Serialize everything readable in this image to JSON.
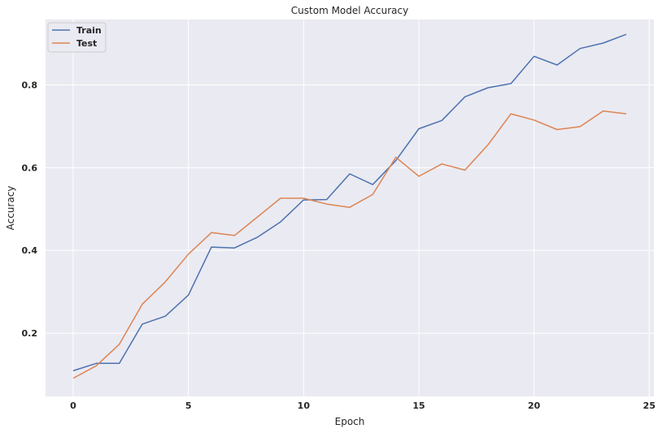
{
  "chart_data": {
    "type": "line",
    "title": "Custom Model Accuracy",
    "xlabel": "Epoch",
    "ylabel": "Accuracy",
    "xlim": [
      -1.2,
      25.2
    ],
    "ylim": [
      0.047,
      0.958
    ],
    "xticks": [
      0,
      5,
      10,
      15,
      20,
      25
    ],
    "yticks": [
      0.2,
      0.4,
      0.6,
      0.8
    ],
    "xtick_labels": [
      "0",
      "5",
      "10",
      "15",
      "20",
      "25"
    ],
    "ytick_labels": [
      "0.2",
      "0.4",
      "0.6",
      "0.8"
    ],
    "grid": true,
    "background": "#eaeaf2",
    "legend_position": "top-left",
    "x": [
      0,
      1,
      2,
      3,
      4,
      5,
      6,
      7,
      8,
      9,
      10,
      11,
      12,
      13,
      14,
      15,
      16,
      17,
      18,
      19,
      20,
      21,
      22,
      23,
      24
    ],
    "series": [
      {
        "name": "Train",
        "color": "#4c72b0",
        "values": [
          0.109,
          0.127,
          0.127,
          0.222,
          0.241,
          0.292,
          0.408,
          0.406,
          0.432,
          0.469,
          0.522,
          0.523,
          0.585,
          0.559,
          0.617,
          0.694,
          0.714,
          0.771,
          0.793,
          0.803,
          0.869,
          0.848,
          0.888,
          0.901,
          0.922
        ]
      },
      {
        "name": "Test",
        "color": "#dd8452",
        "values": [
          0.091,
          0.121,
          0.173,
          0.27,
          0.324,
          0.391,
          0.443,
          0.436,
          0.481,
          0.526,
          0.526,
          0.512,
          0.504,
          0.535,
          0.625,
          0.579,
          0.609,
          0.594,
          0.655,
          0.73,
          0.715,
          0.692,
          0.699,
          0.737,
          0.73
        ]
      }
    ]
  }
}
